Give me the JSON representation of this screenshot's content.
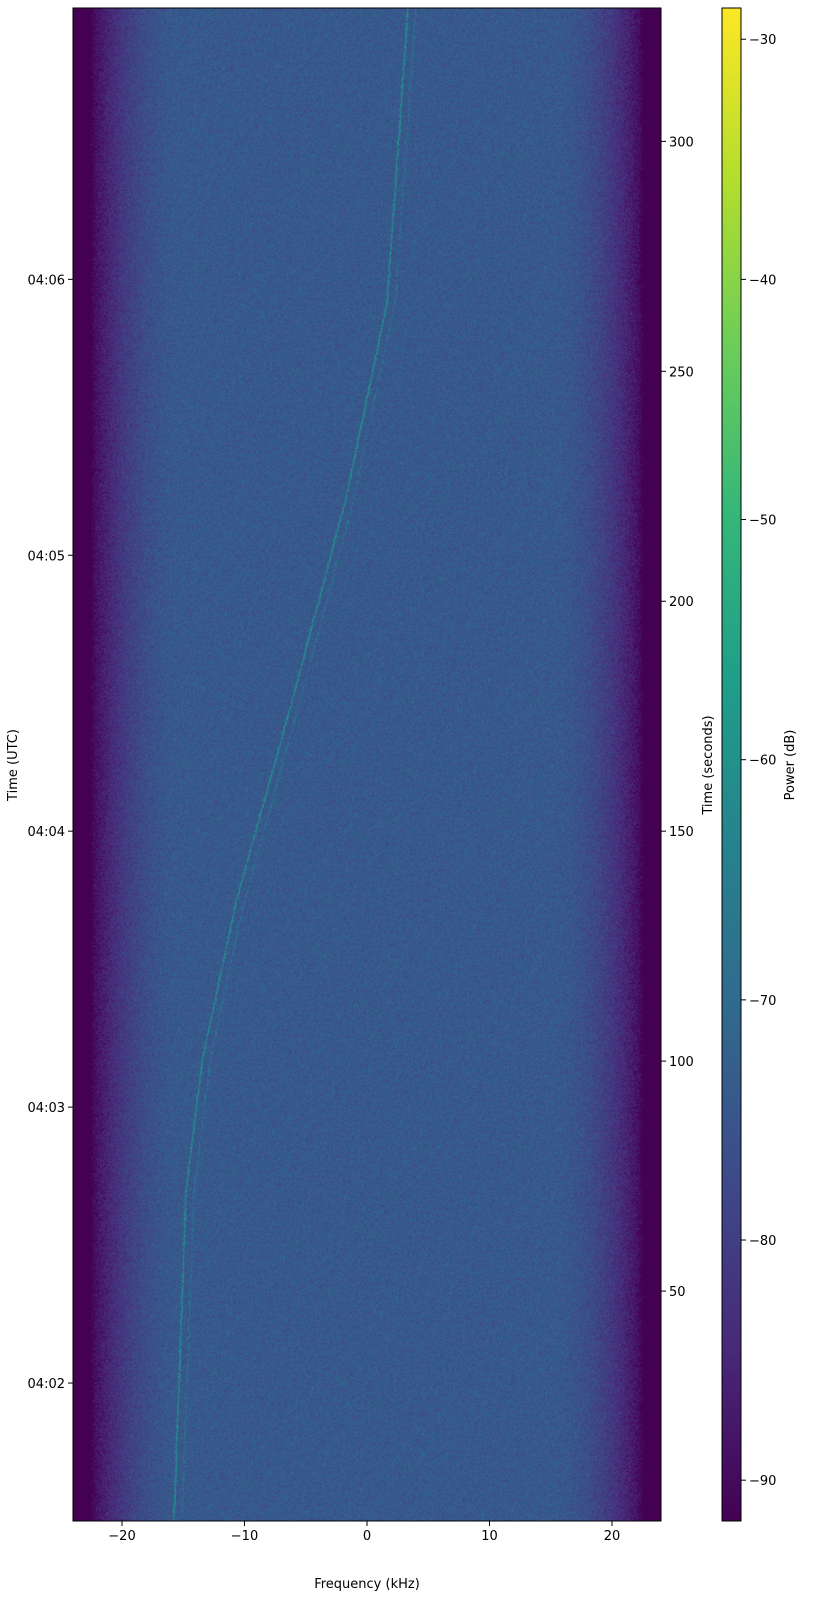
{
  "chart_data": {
    "type": "heatmap",
    "xlabel": "Frequency (kHz)",
    "ylabel_left": "Time (UTC)",
    "ylabel_right": "Time (seconds)",
    "colorbar_label": "Power (dB)",
    "colormap": "viridis",
    "xlim": [
      -24,
      24
    ],
    "ylim_seconds": [
      0,
      329
    ],
    "clim_db": [
      -91.7,
      -28.7
    ],
    "x_ticks": [
      -20,
      -10,
      0,
      10,
      20
    ],
    "x_tick_labels": [
      "−20",
      "−10",
      "0",
      "10",
      "20"
    ],
    "left_ticks_seconds": [
      30,
      90,
      150,
      210,
      270
    ],
    "left_tick_labels": [
      "04:02",
      "04:03",
      "04:04",
      "04:05",
      "04:06"
    ],
    "right_ticks": [
      50,
      100,
      150,
      200,
      250,
      300
    ],
    "right_tick_labels": [
      "50",
      "100",
      "150",
      "200",
      "250",
      "300"
    ],
    "colorbar_ticks": [
      -30,
      -40,
      -50,
      -60,
      -70,
      -80,
      -90
    ],
    "colorbar_tick_labels": [
      "−30",
      "−40",
      "−50",
      "−60",
      "−70",
      "−80",
      "−90"
    ],
    "noise_floor_db": -74,
    "passband_edges_khz": [
      -22.4,
      22.4
    ],
    "signal_trace": {
      "peak_db": -62,
      "time_s": [
        0,
        72,
        100,
        135,
        178,
        222,
        265,
        329
      ],
      "freq_khz": [
        -15.8,
        -14.8,
        -13.5,
        -10.7,
        -6.2,
        -1.8,
        1.6,
        3.3
      ]
    },
    "secondary_trace_offset_khz": 0.65
  },
  "colors": {
    "axis": "#000000",
    "background": "#ffffff"
  }
}
